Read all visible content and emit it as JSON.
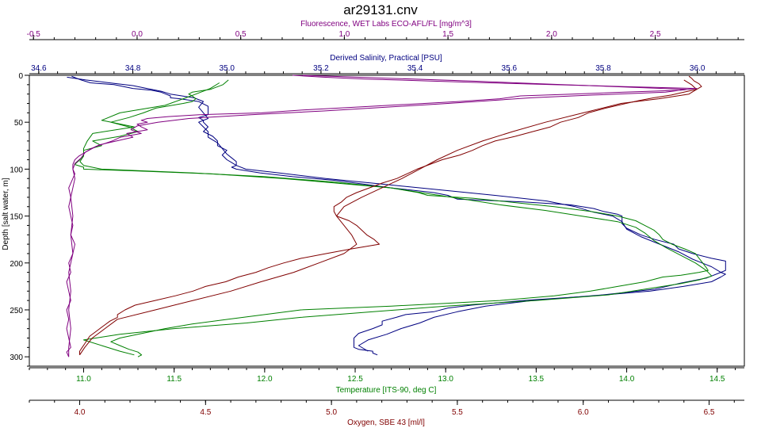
{
  "chart_data": {
    "type": "line",
    "title": "ar29131.cnv",
    "y_axis": {
      "label": "Depth [salt water, m]",
      "range": [
        0,
        310
      ],
      "ticks": [
        0,
        50,
        100,
        150,
        200,
        250,
        300
      ],
      "inverted": true,
      "color": "#000000"
    },
    "x_axes": [
      {
        "key": "fluorescence",
        "label": "Fluorescence, WET Labs ECO-AFL/FL [mg/m^3]",
        "position": "top-1",
        "range": [
          -0.52,
          2.93
        ],
        "ticks": [
          -0.5,
          0.0,
          0.5,
          1.0,
          1.5,
          2.0,
          2.5
        ],
        "tick_labels": [
          "-0.5",
          "0.0",
          "0.5",
          "1.0",
          "1.5",
          "2.0",
          "2.5"
        ],
        "color": "#800080"
      },
      {
        "key": "salinity",
        "label": "Derived Salinity, Practical [PSU]",
        "position": "top-2",
        "range": [
          34.58,
          36.1
        ],
        "ticks": [
          34.6,
          34.8,
          35.0,
          35.2,
          35.4,
          35.6,
          35.8,
          36.0
        ],
        "tick_labels": [
          "34.6",
          "34.8",
          "35.0",
          "35.2",
          "35.4",
          "35.6",
          "35.8",
          "36.0"
        ],
        "color": "#000080"
      },
      {
        "key": "temperature",
        "label": "Temperature [ITS-90, deg C]",
        "position": "bottom-1",
        "range": [
          10.7,
          14.65
        ],
        "ticks": [
          11.0,
          11.5,
          12.0,
          12.5,
          13.0,
          13.5,
          14.0,
          14.5
        ],
        "tick_labels": [
          "11.0",
          "11.5",
          "12.0",
          "12.5",
          "13.0",
          "13.5",
          "14.0",
          "14.5"
        ],
        "color": "#008000"
      },
      {
        "key": "oxygen",
        "label": "Oxygen, SBE 43 [ml/l]",
        "position": "bottom-2",
        "range": [
          3.8,
          6.64
        ],
        "ticks": [
          4.0,
          4.5,
          5.0,
          5.5,
          6.0,
          6.5
        ],
        "tick_labels": [
          "4.0",
          "4.5",
          "5.0",
          "5.5",
          "6.0",
          "6.5"
        ],
        "color": "#800000"
      }
    ],
    "series": [
      {
        "axis": "salinity",
        "color": "#000080",
        "depth": [
          1,
          3,
          5,
          8,
          10,
          14,
          16,
          18,
          20,
          22,
          24,
          25,
          28,
          33,
          38,
          42,
          45,
          48,
          50,
          55,
          60,
          65,
          70,
          75,
          80,
          85,
          90,
          93,
          96,
          98,
          100,
          104,
          108,
          112,
          116,
          120,
          125,
          128,
          132,
          135,
          138,
          142,
          145,
          148,
          150,
          153,
          158,
          163,
          170,
          175,
          180,
          185,
          190,
          195,
          198,
          200,
          203,
          205,
          208,
          210,
          212,
          215,
          220,
          225,
          230,
          235,
          240,
          245,
          248,
          252,
          255,
          258,
          262,
          266,
          270,
          275,
          280,
          285,
          287,
          290,
          292,
          294,
          296,
          298
        ],
        "values": [
          34.67,
          34.68,
          34.69,
          34.71,
          34.76,
          34.8,
          34.84,
          34.86,
          34.87,
          34.88,
          34.88,
          34.9,
          34.94,
          34.96,
          34.96,
          34.96,
          34.94,
          34.95,
          34.95,
          34.96,
          34.95,
          34.97,
          34.98,
          34.98,
          35.0,
          34.99,
          35.0,
          35.01,
          35.02,
          35.01,
          35.02,
          35.07,
          35.14,
          35.23,
          35.29,
          35.35,
          35.44,
          35.47,
          35.49,
          35.63,
          35.73,
          35.78,
          35.8,
          35.83,
          35.84,
          35.84,
          35.84,
          35.85,
          35.88,
          35.91,
          35.95,
          35.96,
          35.99,
          36.03,
          36.06,
          36.06,
          36.06,
          36.06,
          36.06,
          36.05,
          36.06,
          36.05,
          36.03,
          35.97,
          35.9,
          35.78,
          35.63,
          35.52,
          35.47,
          35.44,
          35.38,
          35.36,
          35.33,
          35.33,
          35.31,
          35.28,
          35.27,
          35.27,
          35.27,
          35.27,
          35.28,
          35.31,
          35.31,
          35.32
        ]
      },
      {
        "axis": "salinity",
        "color": "#000080",
        "depth": [
          2,
          5,
          8,
          11,
          14,
          17,
          20,
          24,
          28,
          34,
          40,
          46,
          50,
          55,
          60,
          66,
          72,
          78,
          84,
          88,
          92,
          96,
          100,
          104,
          110,
          116,
          122,
          128,
          134,
          140,
          146,
          150,
          156,
          164,
          172,
          180,
          188,
          196,
          204,
          210,
          216,
          222,
          228,
          234,
          240,
          246,
          252,
          258,
          264,
          270,
          276,
          282,
          288,
          294
        ],
        "values": [
          34.66,
          34.7,
          34.75,
          34.8,
          34.83,
          34.86,
          34.88,
          34.93,
          34.95,
          34.94,
          34.95,
          34.96,
          34.94,
          34.95,
          34.96,
          34.96,
          34.98,
          34.99,
          35.0,
          35.01,
          35.02,
          35.02,
          35.04,
          35.11,
          35.21,
          35.33,
          35.45,
          35.57,
          35.68,
          35.74,
          35.78,
          35.82,
          35.84,
          35.85,
          35.88,
          35.92,
          35.96,
          35.99,
          36.03,
          36.05,
          36.02,
          35.96,
          35.91,
          35.8,
          35.65,
          35.55,
          35.49,
          35.44,
          35.41,
          35.37,
          35.34,
          35.3,
          35.28,
          35.3
        ]
      },
      {
        "axis": "temperature",
        "color": "#008000",
        "depth": [
          5,
          10,
          15,
          18,
          20,
          22,
          25,
          28,
          30,
          35,
          40,
          45,
          50,
          55,
          60,
          65,
          70,
          75,
          80,
          85,
          90,
          95,
          98,
          100,
          102,
          105,
          110,
          115,
          120,
          125,
          128,
          131,
          134,
          137,
          140,
          145,
          150,
          155,
          160,
          165,
          170,
          175,
          180,
          185,
          190,
          195,
          200,
          205,
          208,
          210,
          213,
          215,
          220,
          225,
          230,
          235,
          240,
          243,
          246,
          250,
          255,
          260,
          265,
          270,
          272,
          274,
          276,
          278,
          280,
          284,
          288,
          292,
          295,
          298,
          300
        ],
        "values": [
          11.8,
          11.77,
          11.7,
          11.6,
          11.58,
          11.6,
          11.62,
          11.6,
          11.55,
          11.4,
          11.33,
          11.25,
          11.15,
          11.25,
          11.3,
          11.2,
          11.05,
          11.1,
          11.0,
          11.0,
          10.98,
          10.95,
          11.0,
          11.0,
          11.3,
          11.7,
          12.1,
          12.4,
          12.7,
          12.85,
          12.9,
          13.15,
          13.3,
          13.45,
          13.6,
          13.8,
          13.95,
          14.05,
          14.1,
          14.15,
          14.18,
          14.2,
          14.25,
          14.32,
          14.38,
          14.4,
          14.42,
          14.44,
          14.45,
          14.4,
          14.3,
          14.2,
          14.1,
          13.95,
          13.8,
          13.6,
          13.3,
          13.0,
          12.7,
          12.2,
          12.0,
          11.8,
          11.6,
          11.45,
          11.4,
          11.35,
          11.3,
          11.25,
          11.2,
          11.15,
          11.2,
          11.25,
          11.3,
          11.32,
          11.3
        ]
      },
      {
        "axis": "temperature",
        "color": "#008000",
        "depth": [
          8,
          14,
          20,
          25,
          32,
          40,
          48,
          55,
          62,
          70,
          78,
          86,
          92,
          96,
          100,
          104,
          108,
          114,
          120,
          126,
          132,
          138,
          144,
          150,
          156,
          162,
          168,
          176,
          184,
          192,
          200,
          208,
          214,
          218,
          222,
          228,
          234,
          240,
          246,
          252,
          258,
          264,
          270,
          276,
          282,
          288,
          294,
          298
        ],
        "values": [
          11.75,
          11.7,
          11.62,
          11.55,
          11.45,
          11.2,
          11.1,
          11.28,
          11.05,
          11.02,
          11.0,
          11.0,
          10.98,
          11.0,
          11.1,
          11.6,
          12.0,
          12.4,
          12.7,
          12.9,
          13.1,
          13.3,
          13.55,
          13.75,
          13.95,
          14.05,
          14.1,
          14.15,
          14.22,
          14.3,
          14.38,
          14.44,
          14.47,
          14.4,
          14.3,
          14.1,
          13.9,
          13.5,
          13.0,
          12.6,
          12.2,
          11.9,
          11.5,
          11.2,
          11.0,
          11.1,
          11.2,
          11.28
        ]
      },
      {
        "axis": "oxygen",
        "color": "#800000",
        "depth": [
          1,
          3,
          6,
          9,
          12,
          15,
          18,
          21,
          24,
          27,
          30,
          35,
          40,
          45,
          50,
          55,
          60,
          65,
          70,
          75,
          80,
          85,
          90,
          95,
          100,
          105,
          110,
          115,
          120,
          125,
          130,
          135,
          140,
          145,
          150,
          155,
          160,
          165,
          170,
          175,
          180,
          185,
          190,
          195,
          200,
          205,
          210,
          215,
          220,
          225,
          230,
          235,
          240,
          245,
          250,
          255,
          258,
          262,
          266,
          270,
          274,
          278,
          282,
          286,
          290,
          294,
          298
        ],
        "values": [
          6.42,
          6.43,
          6.44,
          6.46,
          6.47,
          6.45,
          6.4,
          6.35,
          6.28,
          6.22,
          6.17,
          6.09,
          6.02,
          5.98,
          5.91,
          5.87,
          5.8,
          5.73,
          5.65,
          5.6,
          5.56,
          5.51,
          5.44,
          5.39,
          5.34,
          5.3,
          5.26,
          5.2,
          5.15,
          5.1,
          5.06,
          5.04,
          5.01,
          5.01,
          5.02,
          5.07,
          5.1,
          5.12,
          5.14,
          5.17,
          5.19,
          5.08,
          4.98,
          4.88,
          4.81,
          4.75,
          4.7,
          4.63,
          4.58,
          4.5,
          4.45,
          4.38,
          4.3,
          4.22,
          4.18,
          4.15,
          4.15,
          4.12,
          4.1,
          4.08,
          4.06,
          4.04,
          4.03,
          4.02,
          4.01,
          4.0,
          4.0
        ]
      },
      {
        "axis": "oxygen",
        "color": "#800000",
        "depth": [
          5,
          10,
          15,
          20,
          25,
          30,
          40,
          50,
          60,
          70,
          80,
          90,
          100,
          110,
          120,
          130,
          140,
          150,
          160,
          170,
          180,
          190,
          200,
          210,
          220,
          230,
          240,
          250,
          260,
          270,
          280,
          290,
          298
        ],
        "values": [
          6.4,
          6.43,
          6.45,
          6.42,
          6.3,
          6.15,
          6.0,
          5.85,
          5.72,
          5.6,
          5.5,
          5.42,
          5.35,
          5.28,
          5.2,
          5.12,
          5.05,
          5.02,
          5.05,
          5.08,
          5.1,
          5.05,
          4.95,
          4.85,
          4.72,
          4.6,
          4.45,
          4.3,
          4.15,
          4.1,
          4.05,
          4.02,
          4.0
        ]
      },
      {
        "axis": "fluorescence",
        "color": "#800080",
        "depth": [
          0,
          2,
          4,
          6,
          8,
          10,
          12,
          14,
          16,
          18,
          20,
          22,
          25,
          28,
          31,
          34,
          37,
          40,
          42,
          44,
          46,
          48,
          50,
          52,
          55,
          58,
          62,
          66,
          70,
          74,
          78,
          82,
          86,
          90,
          95,
          100,
          105,
          110,
          120,
          130,
          140,
          150,
          160,
          170,
          180,
          190,
          200,
          210,
          220,
          230,
          240,
          250,
          260,
          270,
          280,
          290,
          295,
          300
        ],
        "values": [
          0.75,
          0.9,
          1.1,
          1.4,
          1.7,
          2.0,
          2.35,
          2.7,
          2.62,
          2.35,
          2.1,
          1.85,
          1.75,
          1.55,
          1.3,
          1.05,
          0.8,
          0.6,
          0.3,
          0.15,
          0.05,
          0.02,
          0.05,
          0.0,
          0.02,
          0.05,
          -0.05,
          -0.02,
          -0.1,
          -0.18,
          -0.22,
          -0.25,
          -0.28,
          -0.3,
          -0.31,
          -0.31,
          -0.3,
          -0.31,
          -0.33,
          -0.32,
          -0.33,
          -0.32,
          -0.31,
          -0.32,
          -0.3,
          -0.31,
          -0.33,
          -0.32,
          -0.34,
          -0.33,
          -0.32,
          -0.34,
          -0.33,
          -0.34,
          -0.33,
          -0.32,
          -0.34,
          -0.33
        ]
      },
      {
        "axis": "fluorescence",
        "color": "#800080",
        "depth": [
          0,
          3,
          6,
          9,
          12,
          15,
          18,
          21,
          24,
          27,
          30,
          34,
          38,
          42,
          46,
          50,
          54,
          58,
          62,
          66,
          70,
          76,
          82,
          88,
          94,
          100,
          110,
          130,
          150,
          170,
          190,
          210,
          230,
          250,
          270,
          290,
          300
        ],
        "values": [
          0.8,
          1.2,
          1.6,
          1.95,
          2.3,
          2.65,
          2.55,
          2.2,
          1.9,
          1.7,
          1.5,
          1.2,
          0.9,
          0.55,
          0.25,
          0.1,
          0.0,
          -0.03,
          0.02,
          -0.08,
          -0.12,
          -0.2,
          -0.25,
          -0.27,
          -0.3,
          -0.31,
          -0.3,
          -0.32,
          -0.31,
          -0.32,
          -0.31,
          -0.33,
          -0.32,
          -0.33,
          -0.32,
          -0.33,
          -0.33
        ]
      }
    ]
  }
}
